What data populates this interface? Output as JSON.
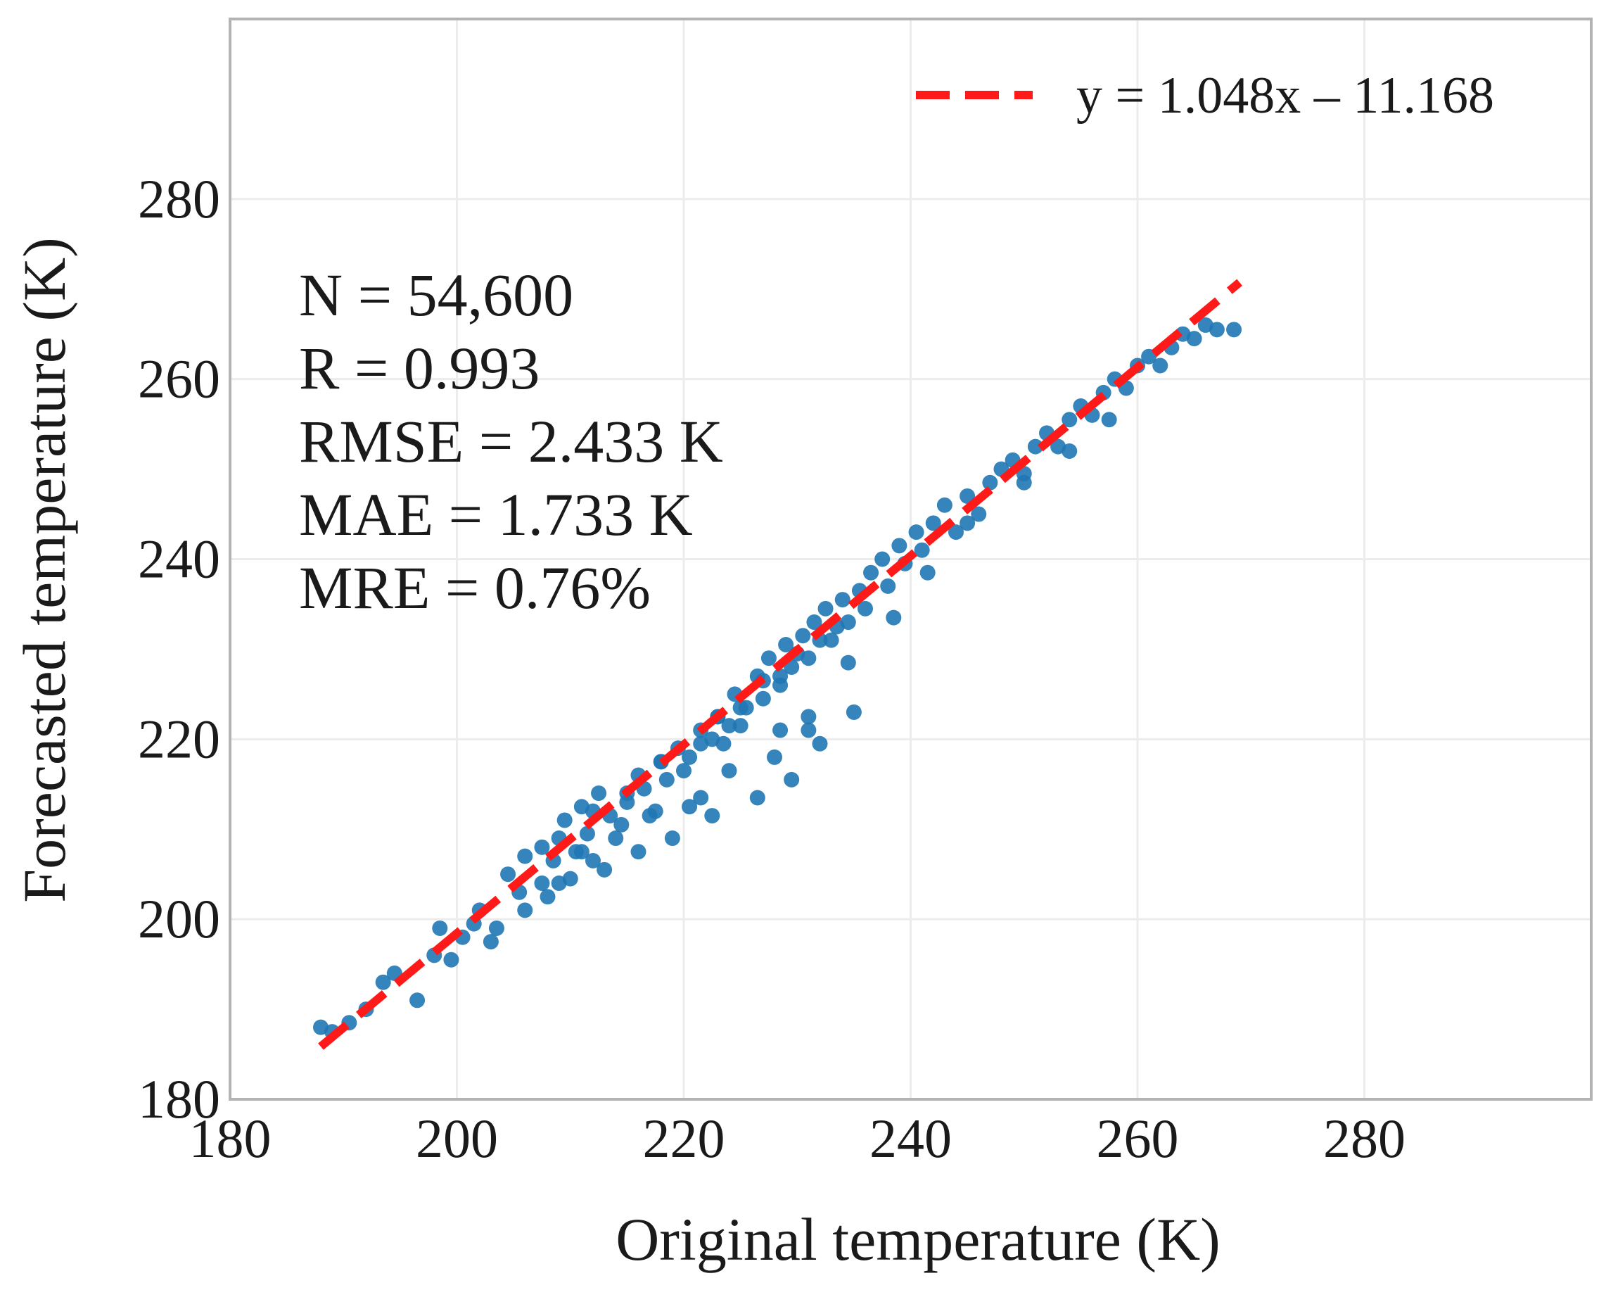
{
  "chart_data": {
    "type": "scatter",
    "title": "",
    "xlabel": "Original temperature (K)",
    "ylabel": "Forecasted temperature (K)",
    "xlim": [
      180,
      300
    ],
    "ylim": [
      180,
      300
    ],
    "xticks": [
      180,
      200,
      220,
      240,
      260,
      280
    ],
    "yticks": [
      180,
      200,
      220,
      240,
      260,
      280
    ],
    "grid": true,
    "legend_position": "top-right",
    "series": [
      {
        "color": "#1f77b4",
        "marker": "circle",
        "points": [
          [
            188,
            188
          ],
          [
            189,
            187.5
          ],
          [
            190.5,
            188.5
          ],
          [
            192,
            190
          ],
          [
            193.5,
            193
          ],
          [
            194.5,
            194
          ],
          [
            196.5,
            191
          ],
          [
            198,
            196
          ],
          [
            198.5,
            199
          ],
          [
            199.5,
            195.5
          ],
          [
            200.5,
            198
          ],
          [
            201.5,
            199.5
          ],
          [
            202,
            201
          ],
          [
            203,
            197.5
          ],
          [
            203.5,
            199
          ],
          [
            204.5,
            205
          ],
          [
            205.5,
            203
          ],
          [
            206,
            207
          ],
          [
            207.5,
            204
          ],
          [
            207.5,
            208
          ],
          [
            208.5,
            206.5
          ],
          [
            209,
            209
          ],
          [
            209.5,
            211
          ],
          [
            210.5,
            207.5
          ],
          [
            211,
            212.5
          ],
          [
            211.5,
            209.5
          ],
          [
            212.5,
            214
          ],
          [
            213,
            205.5
          ],
          [
            213.5,
            211.5
          ],
          [
            214.5,
            210.5
          ],
          [
            215,
            213
          ],
          [
            216,
            216
          ],
          [
            216.5,
            214.5
          ],
          [
            217.5,
            212
          ],
          [
            218,
            217.5
          ],
          [
            218.5,
            215.5
          ],
          [
            219.5,
            219
          ],
          [
            220,
            216.5
          ],
          [
            220.5,
            218
          ],
          [
            221.5,
            221
          ],
          [
            221.5,
            213.5
          ],
          [
            222.5,
            220
          ],
          [
            223,
            222.5
          ],
          [
            223.5,
            219.5
          ],
          [
            224.5,
            225
          ],
          [
            225,
            221.5
          ],
          [
            225.5,
            223.5
          ],
          [
            226.5,
            227
          ],
          [
            227,
            224.5
          ],
          [
            227.5,
            229
          ],
          [
            228.5,
            226
          ],
          [
            229,
            230.5
          ],
          [
            229.5,
            228
          ],
          [
            230.5,
            231.5
          ],
          [
            231,
            229
          ],
          [
            231.5,
            233
          ],
          [
            232.5,
            234.5
          ],
          [
            233,
            231
          ],
          [
            234,
            235.5
          ],
          [
            234.5,
            233
          ],
          [
            235.5,
            236.5
          ],
          [
            236,
            234.5
          ],
          [
            236.5,
            238.5
          ],
          [
            237.5,
            240
          ],
          [
            238,
            237
          ],
          [
            239,
            241.5
          ],
          [
            239.5,
            239.5
          ],
          [
            240.5,
            243
          ],
          [
            241,
            241
          ],
          [
            242,
            244
          ],
          [
            243,
            246
          ],
          [
            244,
            243
          ],
          [
            245,
            247
          ],
          [
            246,
            245
          ],
          [
            247,
            248.5
          ],
          [
            248,
            250
          ],
          [
            249,
            251
          ],
          [
            250,
            249.5
          ],
          [
            251,
            252.5
          ],
          [
            252,
            254
          ],
          [
            253,
            252.5
          ],
          [
            254,
            255.5
          ],
          [
            255,
            257
          ],
          [
            256,
            256
          ],
          [
            257,
            258.5
          ],
          [
            258,
            260
          ],
          [
            259,
            259
          ],
          [
            260,
            261.5
          ],
          [
            261,
            262.5
          ],
          [
            262,
            261.5
          ],
          [
            263,
            263.5
          ],
          [
            264,
            265
          ],
          [
            265,
            264.5
          ],
          [
            266,
            266
          ],
          [
            267,
            265.5
          ],
          [
            268.5,
            265.5
          ],
          [
            221.5,
            219.5
          ],
          [
            223,
            222.5
          ],
          [
            225,
            223.5
          ],
          [
            227,
            226.5
          ],
          [
            228.5,
            227
          ],
          [
            230,
            229.5
          ],
          [
            232,
            231
          ],
          [
            233.5,
            232.5
          ],
          [
            206,
            201
          ],
          [
            208,
            202.5
          ],
          [
            210,
            204.5
          ],
          [
            212,
            206.5
          ],
          [
            216,
            207.5
          ],
          [
            219,
            209
          ],
          [
            222.5,
            211.5
          ],
          [
            226.5,
            213.5
          ],
          [
            229.5,
            215.5
          ],
          [
            232,
            219.5
          ],
          [
            235,
            223
          ],
          [
            228.5,
            221
          ],
          [
            231,
            222.5
          ],
          [
            234.5,
            228.5
          ],
          [
            238.5,
            233.5
          ],
          [
            241.5,
            238.5
          ],
          [
            245,
            244
          ],
          [
            250,
            248.5
          ],
          [
            254,
            252
          ],
          [
            257.5,
            255.5
          ],
          [
            209,
            204
          ],
          [
            211,
            207.5
          ],
          [
            214,
            209
          ],
          [
            217,
            211.5
          ],
          [
            220.5,
            212.5
          ],
          [
            224,
            216.5
          ],
          [
            228,
            218
          ],
          [
            231,
            221
          ],
          [
            212,
            212
          ],
          [
            215,
            214
          ],
          [
            218,
            217.5
          ],
          [
            224,
            221.5
          ]
        ]
      }
    ],
    "fit_line": {
      "label": "y = 1.048x – 11.168",
      "slope": 1.048,
      "intercept": -11.168,
      "x_start": 188,
      "x_end": 269,
      "color": "#ff1a1a",
      "style": "dashed"
    },
    "annotations": [
      "N = 54,600",
      "R = 0.993",
      "RMSE = 2.433 K",
      "MAE = 1.733 K",
      "MRE = 0.76%"
    ]
  }
}
